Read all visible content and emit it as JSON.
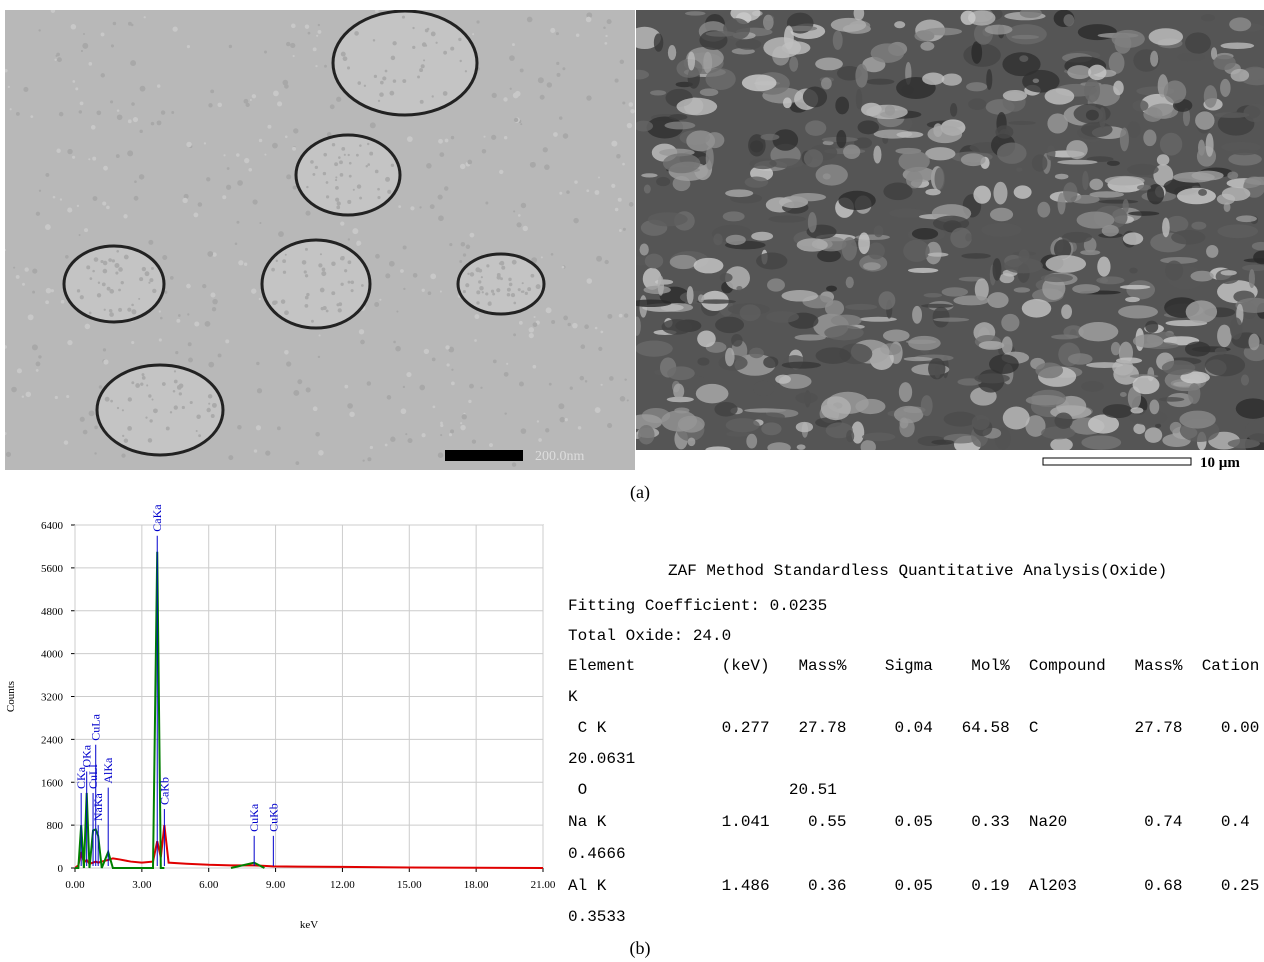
{
  "figure": {
    "panel_a_label": "(a)",
    "panel_b_label": "(b)",
    "tem_scale_label": "200.0nm",
    "sem_scale_label": "10 µm"
  },
  "chart_data": {
    "type": "line",
    "x_label": "keV",
    "y_label": "Counts",
    "x": [
      0,
      0.15,
      0.277,
      0.4,
      0.525,
      0.65,
      0.81,
      0.93,
      1.04,
      1.2,
      1.49,
      1.7,
      2.0,
      2.5,
      3.0,
      3.5,
      3.69,
      3.85,
      4.01,
      4.2,
      5.0,
      6.0,
      7.0,
      8.04,
      8.5,
      8.9,
      10,
      12,
      15,
      18,
      21
    ],
    "series": [
      {
        "color": "#e00000",
        "values": [
          0,
          50,
          300,
          100,
          150,
          80,
          100,
          120,
          100,
          120,
          150,
          180,
          160,
          120,
          100,
          120,
          500,
          200,
          800,
          100,
          80,
          60,
          50,
          50,
          40,
          30,
          25,
          20,
          10,
          5,
          0
        ]
      },
      {
        "color": "#008000",
        "values": [
          0,
          0,
          800,
          0,
          1400,
          0,
          700,
          720,
          600,
          0,
          300,
          0,
          0,
          0,
          0,
          0,
          5900,
          0,
          0,
          null,
          null,
          null,
          0,
          100,
          0,
          null,
          null,
          null,
          null,
          null,
          null
        ]
      }
    ],
    "peak_color": "#0000cc",
    "peaks": [
      {
        "label": "CKa",
        "x": 0.277,
        "y": 1400
      },
      {
        "label": "OKa",
        "x": 0.525,
        "y": 1800
      },
      {
        "label": "CuLl",
        "x": 0.81,
        "y": 1400
      },
      {
        "label": "CuLa",
        "x": 0.93,
        "y": 2300
      },
      {
        "label": "NaKa",
        "x": 1.04,
        "y": 800
      },
      {
        "label": "AlKa",
        "x": 1.49,
        "y": 1500
      },
      {
        "label": "CaKa",
        "x": 3.69,
        "y": 6200
      },
      {
        "label": "CaKb",
        "x": 4.01,
        "y": 1100
      },
      {
        "label": "CuKa",
        "x": 8.04,
        "y": 600
      },
      {
        "label": "CuKb",
        "x": 8.9,
        "y": 600
      }
    ],
    "xlim": [
      0,
      21
    ],
    "ylim": [
      0,
      6400
    ],
    "grid": true,
    "xticks": [
      {
        "value": 0,
        "label": "0.00"
      },
      {
        "value": 3,
        "label": "3.00"
      },
      {
        "value": 6,
        "label": "6.00"
      },
      {
        "value": 9,
        "label": "9.00"
      },
      {
        "value": 12,
        "label": "12.00"
      },
      {
        "value": 15,
        "label": "15.00"
      },
      {
        "value": 18,
        "label": "18.00"
      },
      {
        "value": 21,
        "label": "21.00"
      }
    ],
    "yticks": [
      0,
      800,
      1600,
      2400,
      3200,
      4000,
      4800,
      5600,
      6400
    ]
  },
  "zaf": {
    "title": "ZAF Method Standardless Quantitative Analysis(Oxide)",
    "lines": [
      "Fitting Coefficient: 0.0235",
      "Total Oxide: 24.0",
      "Element         (keV)   Mass%    Sigma    Mol%  Compound   Mass%  Cation",
      "K",
      " C K            0.277   27.78     0.04   64.58  C          27.78    0.00",
      "20.0631",
      " O                     20.51",
      "Na K            1.041    0.55     0.05    0.33  Na20        0.74    0.4",
      "0.4666",
      "Al K            1.486    0.36     0.05    0.19  Al203       0.68    0.25",
      "0.3533"
    ]
  }
}
